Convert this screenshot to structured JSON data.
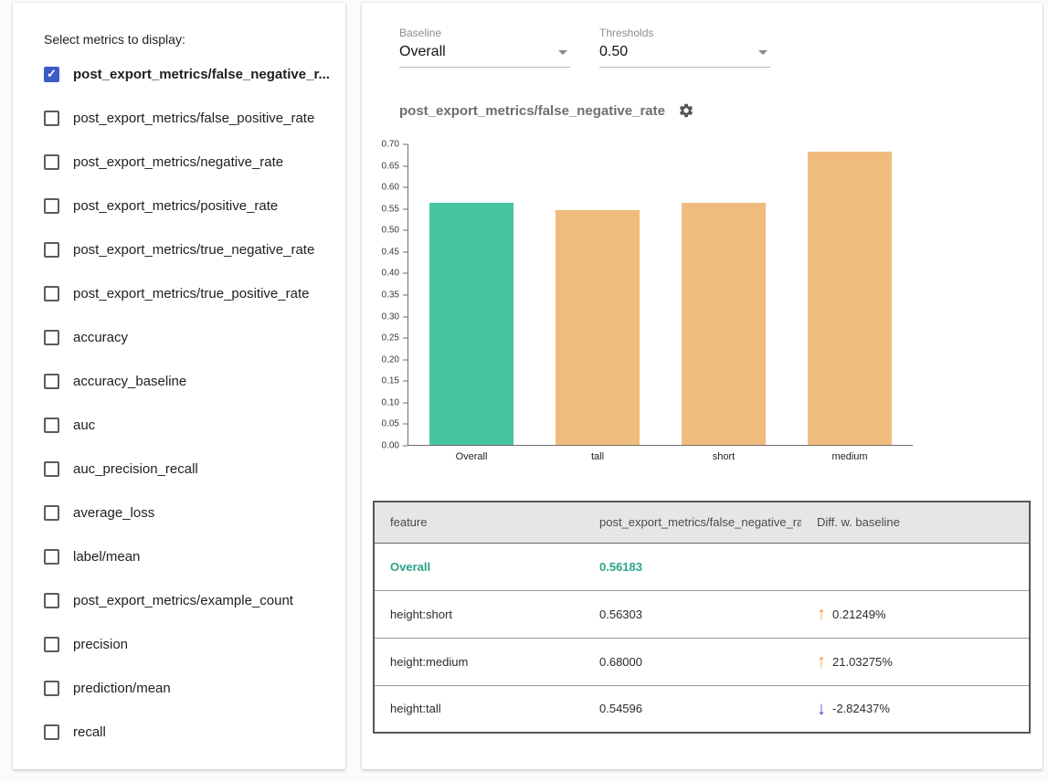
{
  "colors": {
    "accent_blue": "#3b5bc7",
    "table_highlight": "#2aa489",
    "diff_up": "#f29b38",
    "diff_down": "#3b55c9"
  },
  "left_panel": {
    "title": "Select metrics to display:",
    "metrics": [
      {
        "label": "post_export_metrics/false_negative_r...",
        "checked": true
      },
      {
        "label": "post_export_metrics/false_positive_rate",
        "checked": false
      },
      {
        "label": "post_export_metrics/negative_rate",
        "checked": false
      },
      {
        "label": "post_export_metrics/positive_rate",
        "checked": false
      },
      {
        "label": "post_export_metrics/true_negative_rate",
        "checked": false
      },
      {
        "label": "post_export_metrics/true_positive_rate",
        "checked": false
      },
      {
        "label": "accuracy",
        "checked": false
      },
      {
        "label": "accuracy_baseline",
        "checked": false
      },
      {
        "label": "auc",
        "checked": false
      },
      {
        "label": "auc_precision_recall",
        "checked": false
      },
      {
        "label": "average_loss",
        "checked": false
      },
      {
        "label": "label/mean",
        "checked": false
      },
      {
        "label": "post_export_metrics/example_count",
        "checked": false
      },
      {
        "label": "precision",
        "checked": false
      },
      {
        "label": "prediction/mean",
        "checked": false
      },
      {
        "label": "recall",
        "checked": false
      }
    ]
  },
  "controls": {
    "baseline": {
      "label": "Baseline",
      "value": "Overall"
    },
    "thresholds": {
      "label": "Thresholds",
      "value": "0.50"
    }
  },
  "chart_data": {
    "type": "bar",
    "title": "post_export_metrics/false_negative_rate",
    "categories": [
      "Overall",
      "tall",
      "short",
      "medium"
    ],
    "values": [
      0.56183,
      0.54596,
      0.56303,
      0.68
    ],
    "colors": [
      "#46c5a1",
      "#f0bc7d",
      "#f0bc7d",
      "#f0bc7d"
    ],
    "xlabel": "",
    "ylabel": "",
    "ylim": [
      0,
      0.7
    ],
    "ytick_step": 0.05,
    "grid": false,
    "legend": "none"
  },
  "table": {
    "headers": [
      "feature",
      "post_export_metrics/false_negative_rat...",
      "Diff. w. baseline"
    ],
    "rows": [
      {
        "feature": "Overall",
        "value": "0.56183",
        "diff": "",
        "direction": "none",
        "highlight": true
      },
      {
        "feature": "height:short",
        "value": "0.56303",
        "diff": "0.21249%",
        "direction": "up",
        "highlight": false
      },
      {
        "feature": "height:medium",
        "value": "0.68000",
        "diff": "21.03275%",
        "direction": "up",
        "highlight": false
      },
      {
        "feature": "height:tall",
        "value": "0.54596",
        "diff": "-2.82437%",
        "direction": "down",
        "highlight": false
      }
    ]
  }
}
